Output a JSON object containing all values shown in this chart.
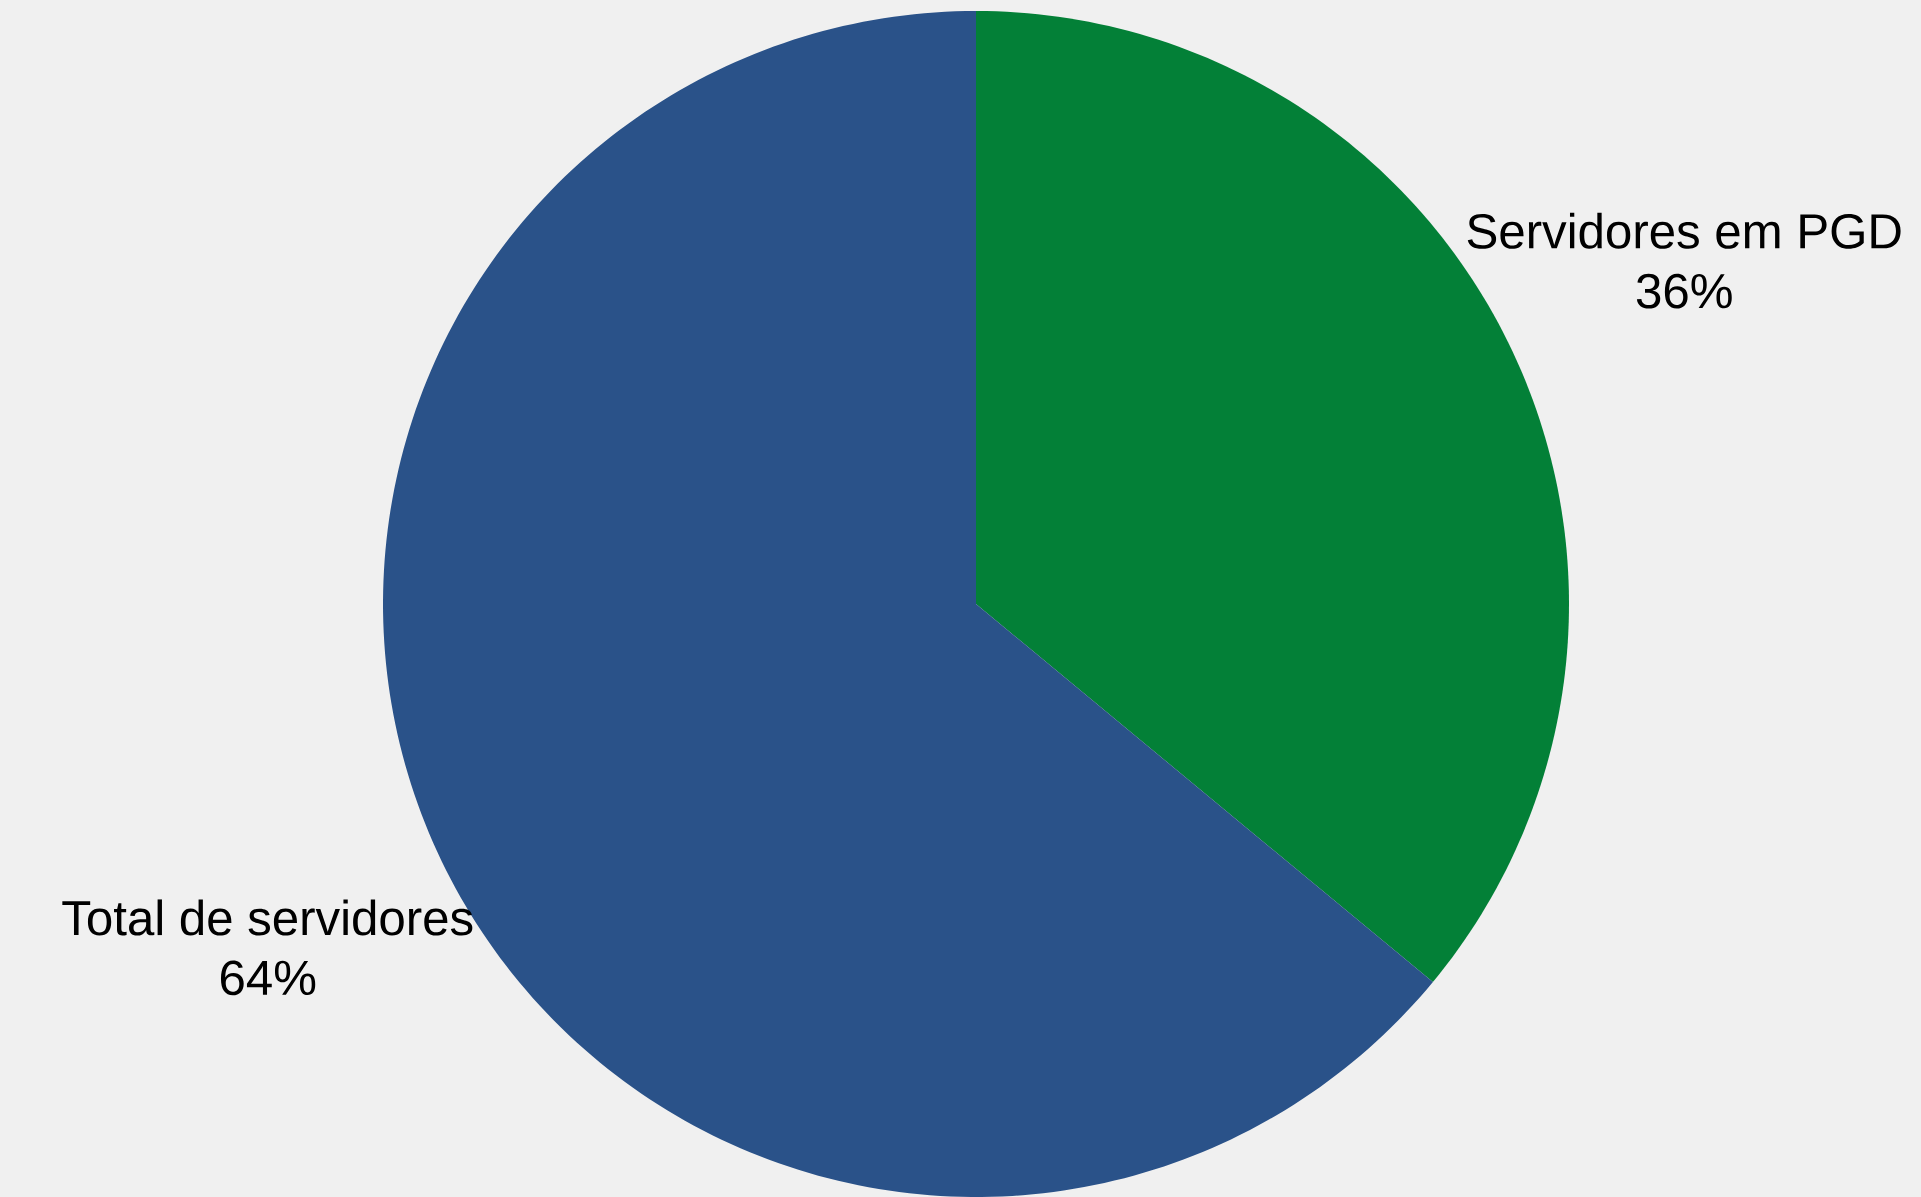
{
  "chart_data": {
    "type": "pie",
    "categories": [
      "Servidores em PGD",
      "Total de servidores"
    ],
    "values": [
      36,
      64
    ],
    "colors": [
      "#038037",
      "#2a5289"
    ],
    "value_labels": [
      "36%",
      "64%"
    ]
  }
}
